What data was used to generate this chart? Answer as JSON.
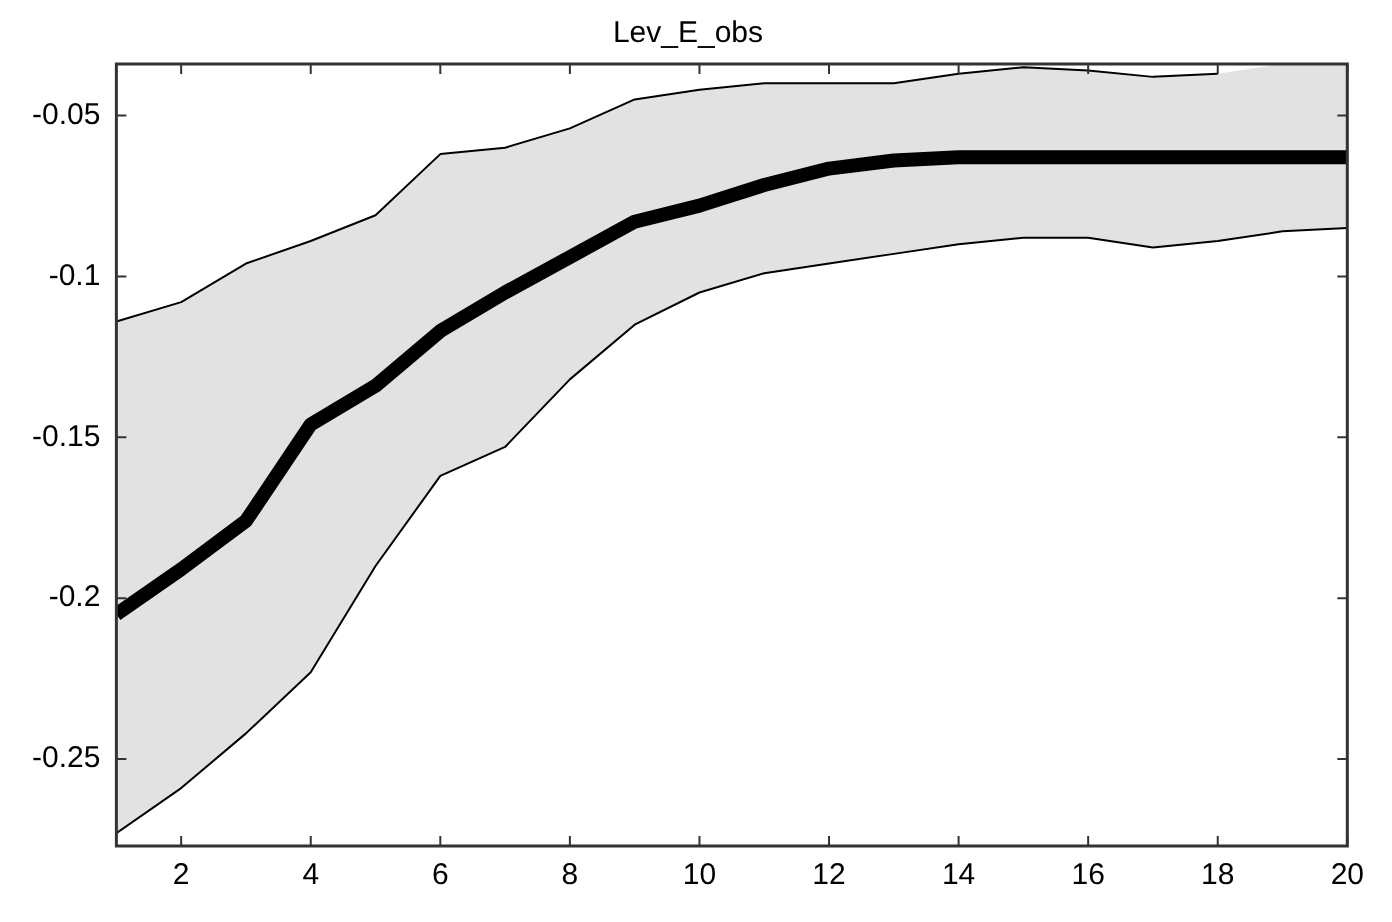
{
  "chart_data": {
    "type": "line",
    "title": "Lev_E_obs",
    "x": [
      1,
      2,
      3,
      4,
      5,
      6,
      7,
      8,
      9,
      10,
      11,
      12,
      13,
      14,
      15,
      16,
      17,
      18,
      19,
      20
    ],
    "series": [
      {
        "color": "#000000",
        "values": [
          -0.205,
          -0.191,
          -0.176,
          -0.146,
          -0.134,
          -0.117,
          -0.105,
          -0.094,
          -0.083,
          -0.078,
          -0.0716,
          -0.0665,
          -0.064,
          -0.063,
          -0.063,
          -0.063,
          -0.063,
          -0.063,
          -0.063,
          -0.063
        ],
        "upper": [
          -0.114,
          -0.108,
          -0.096,
          -0.089,
          -0.081,
          -0.062,
          -0.06,
          -0.054,
          -0.045,
          -0.042,
          -0.04,
          -0.04,
          -0.04,
          -0.037,
          -0.035,
          -0.036,
          -0.038,
          -0.037,
          -0.034,
          -0.034
        ],
        "lower": [
          -0.273,
          -0.259,
          -0.242,
          -0.223,
          -0.19,
          -0.162,
          -0.153,
          -0.132,
          -0.115,
          -0.105,
          -0.099,
          -0.096,
          -0.093,
          -0.09,
          -0.088,
          -0.088,
          -0.091,
          -0.089,
          -0.086,
          -0.085
        ]
      },
      {
        "color": "#000000",
        "values": [
          -0.114,
          -0.108,
          -0.096,
          -0.089,
          -0.081,
          -0.062,
          -0.06,
          -0.054,
          -0.045,
          -0.042,
          -0.04,
          -0.04,
          -0.04,
          -0.037,
          -0.035,
          -0.036,
          -0.038,
          -0.037,
          null,
          null
        ]
      },
      {
        "color": "#000000",
        "values": [
          -0.273,
          -0.259,
          -0.242,
          -0.223,
          -0.19,
          -0.162,
          -0.153,
          -0.132,
          -0.115,
          -0.105,
          -0.099,
          -0.096,
          -0.093,
          -0.09,
          -0.088,
          -0.088,
          -0.091,
          -0.089,
          -0.086,
          -0.085
        ]
      }
    ],
    "xlim": [
      1,
      20
    ],
    "xticks": [
      2,
      4,
      6,
      8,
      10,
      12,
      14,
      16,
      18,
      20
    ],
    "ylim": [
      -0.277,
      -0.034
    ],
    "yticks": [
      -0.25,
      -0.2,
      -0.15,
      -0.1,
      -0.05
    ],
    "grid": false,
    "legend": false,
    "marker": "none",
    "line_style": "solid"
  }
}
